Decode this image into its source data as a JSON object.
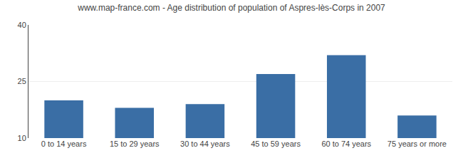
{
  "chart_data": {
    "type": "bar",
    "title": "www.map-france.com - Age distribution of population of Aspres-lès-Corps in 2007",
    "categories": [
      "0 to 14 years",
      "15 to 29 years",
      "30 to 44 years",
      "45 to 59 years",
      "60 to 74 years",
      "75 years or more"
    ],
    "values": [
      20,
      18,
      19,
      27,
      32,
      16
    ],
    "color": "#3a6ea5",
    "ylim": [
      10,
      40
    ],
    "yticks": [
      10,
      25,
      40
    ],
    "grid": true
  }
}
